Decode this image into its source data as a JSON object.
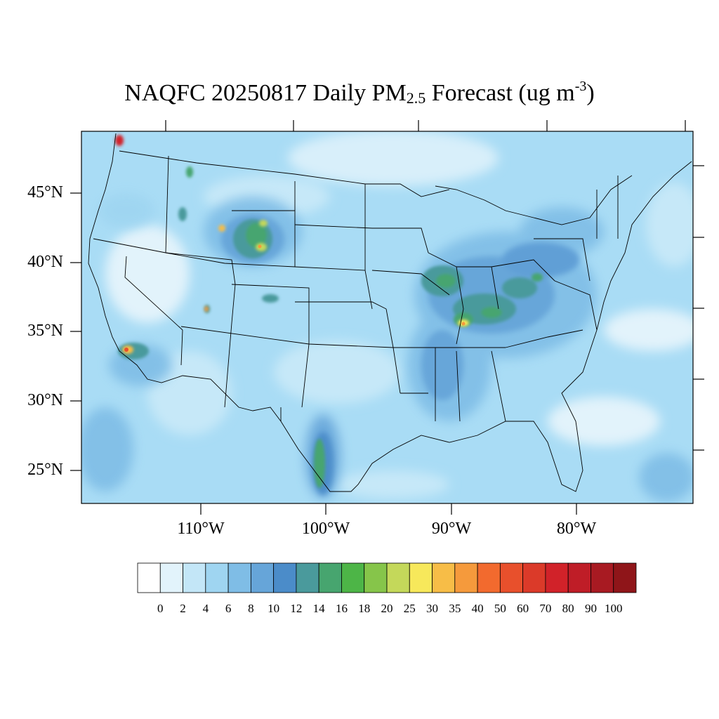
{
  "title": {
    "prefix": "NAQFC 20250817 Daily PM",
    "subscript": "2.5",
    "middle": " Forecast (ug m",
    "superscript": "-3",
    "suffix": ")"
  },
  "lat_labels": [
    "45°N",
    "40°N",
    "35°N",
    "30°N",
    "25°N"
  ],
  "lon_labels": [
    "110°W",
    "100°W",
    "90°W",
    "80°W"
  ],
  "colorbar": {
    "labels": [
      "0",
      "2",
      "4",
      "6",
      "8",
      "10",
      "12",
      "14",
      "16",
      "18",
      "20",
      "25",
      "30",
      "35",
      "40",
      "50",
      "60",
      "70",
      "80",
      "90",
      "100"
    ],
    "colors": [
      "#ffffff",
      "#e2f3fb",
      "#c3e6f7",
      "#9fd5f1",
      "#7fbde6",
      "#66a5d9",
      "#4b8cc9",
      "#4a9a9c",
      "#47a56f",
      "#4db547",
      "#86c54a",
      "#c4d85a",
      "#f7e85b",
      "#f7bd47",
      "#f59a3c",
      "#f26a2e",
      "#e8502c",
      "#db3a29",
      "#d12229",
      "#bf1d27",
      "#a81a22",
      "#8f1519"
    ]
  },
  "colors": {
    "background_field": "#a9dcf5",
    "ocean_light": "#c6e8f8",
    "boundary": "#000000"
  }
}
